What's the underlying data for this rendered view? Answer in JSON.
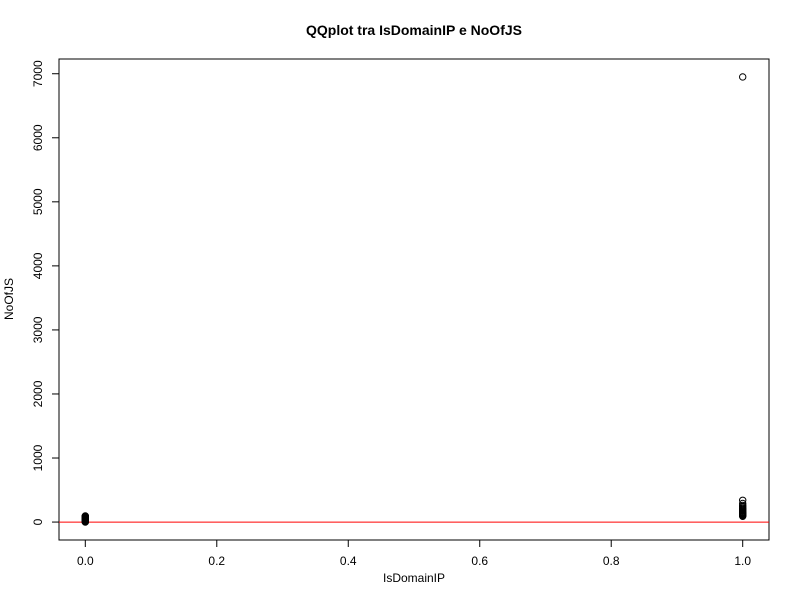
{
  "chart_data": {
    "type": "scatter",
    "title": "QQplot tra IsDomainIP e NoOfJS",
    "xlabel": "IsDomainIP",
    "ylabel": "NoOfJS",
    "xlim": [
      -0.04,
      1.04
    ],
    "ylim": [
      -280,
      7230
    ],
    "x_ticks": [
      0.0,
      0.2,
      0.4,
      0.6,
      0.8,
      1.0
    ],
    "x_tick_labels": [
      "0.0",
      "0.2",
      "0.4",
      "0.6",
      "0.8",
      "1.0"
    ],
    "y_ticks": [
      0,
      1000,
      2000,
      3000,
      4000,
      5000,
      6000,
      7000
    ],
    "y_tick_labels": [
      "0",
      "1000",
      "2000",
      "3000",
      "4000",
      "5000",
      "6000",
      "7000"
    ],
    "grid": false,
    "point_color": "#000000",
    "reference_line": {
      "y": 0,
      "color": "#ff0000"
    },
    "series": [
      {
        "points": [
          [
            0,
            0
          ],
          [
            0,
            5
          ],
          [
            0,
            10
          ],
          [
            0,
            15
          ],
          [
            0,
            20
          ],
          [
            0,
            25
          ],
          [
            0,
            30
          ],
          [
            0,
            35
          ],
          [
            0,
            40
          ],
          [
            0,
            45
          ],
          [
            0,
            50
          ],
          [
            0,
            55
          ],
          [
            0,
            60
          ],
          [
            0,
            65
          ],
          [
            0,
            70
          ],
          [
            0,
            75
          ],
          [
            0,
            80
          ],
          [
            0,
            85
          ],
          [
            0,
            90
          ],
          [
            0,
            95
          ],
          [
            1,
            90
          ],
          [
            1,
            100
          ],
          [
            1,
            110
          ],
          [
            1,
            120
          ],
          [
            1,
            130
          ],
          [
            1,
            140
          ],
          [
            1,
            150
          ],
          [
            1,
            160
          ],
          [
            1,
            175
          ],
          [
            1,
            190
          ],
          [
            1,
            205
          ],
          [
            1,
            220
          ],
          [
            1,
            240
          ],
          [
            1,
            260
          ],
          [
            1,
            290
          ],
          [
            1,
            340
          ],
          [
            1,
            6950
          ]
        ]
      }
    ]
  }
}
